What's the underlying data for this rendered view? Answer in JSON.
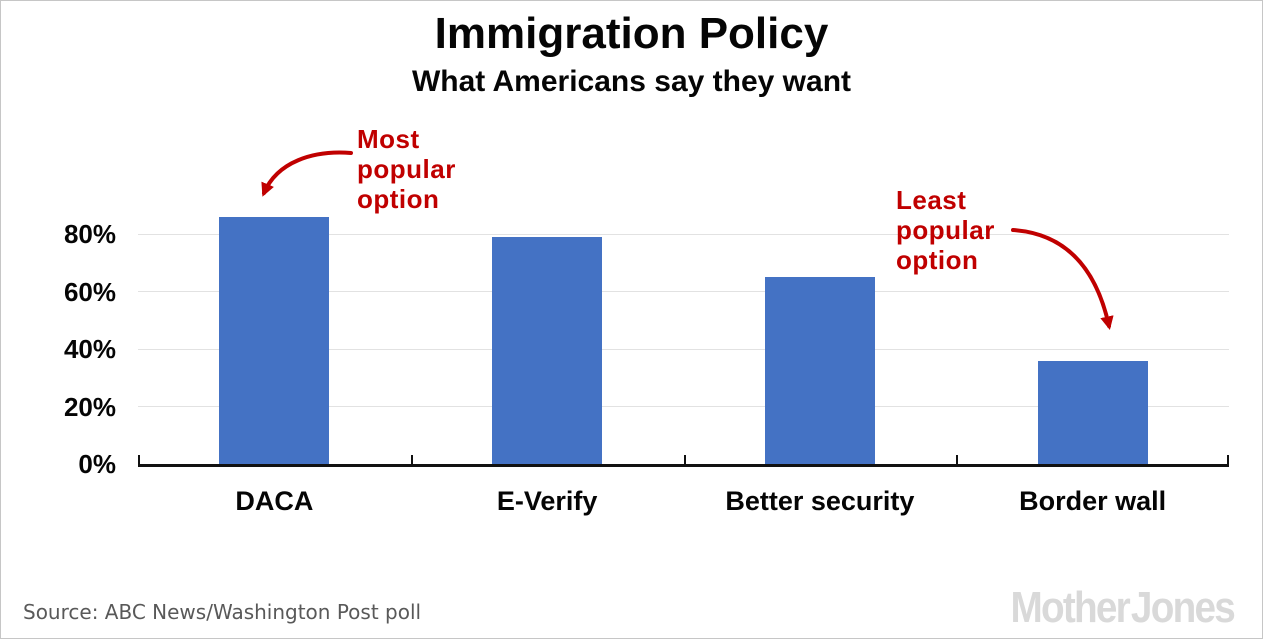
{
  "header": {
    "title": "Immigration Policy",
    "subtitle": "What Americans say they want"
  },
  "annotations": {
    "most": {
      "line1": "Most",
      "line2": "popular",
      "line3": "option"
    },
    "least": {
      "line1": "Least",
      "line2": "popular",
      "line3": "option"
    }
  },
  "footer": {
    "source": "Source: ABC News/Washington Post poll",
    "brand": "Mother Jones"
  },
  "colors": {
    "bar_blue": "#4472C4",
    "annotation_red": "#C00000",
    "gridline_gray": "#E2E2E2",
    "axis_black": "#111111",
    "source_gray": "#595959",
    "logo_gray": "#D9D9D9"
  },
  "chart_data": {
    "type": "bar",
    "title": "Immigration Policy",
    "subtitle": "What Americans say they want",
    "categories": [
      "DACA",
      "E-Verify",
      "Better security",
      "Border wall"
    ],
    "values": [
      86,
      79,
      65,
      36
    ],
    "unit": "%",
    "y_ticks": [
      0,
      20,
      40,
      60,
      80
    ],
    "y_tick_labels": [
      "0%",
      "20%",
      "40%",
      "60%",
      "80%"
    ],
    "ylim": [
      0,
      93
    ],
    "grid": true,
    "legend": false,
    "bar_color": "#4472C4",
    "annotations": [
      {
        "text": "Most popular option",
        "target": "DACA"
      },
      {
        "text": "Least popular option",
        "target": "Border wall"
      }
    ],
    "source": "ABC News/Washington Post poll"
  }
}
